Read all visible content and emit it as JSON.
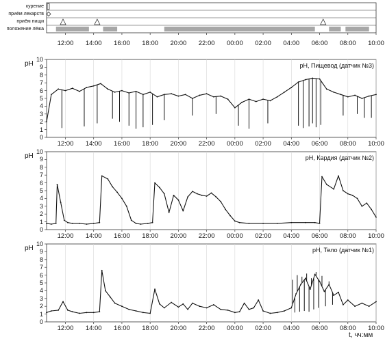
{
  "event_rows": [
    "курение",
    "приём лекарств",
    "приём пищи",
    "положение лёжа"
  ],
  "event_ticks": [
    "12:00",
    "14:00",
    "16:00",
    "18:00",
    "20:00",
    "22:00",
    "00:00",
    "02:00",
    "04:00",
    "06:00",
    "08:00",
    "10:00"
  ],
  "unit_label": "t, чч:мм",
  "colors": {
    "trace": "#111111",
    "recumbent": "#a7a7a7",
    "frame": "#333333",
    "grid": "#d7d7d7"
  },
  "chart_data": [
    {
      "type": "line",
      "title": "pH, Пищевод (датчик №3)",
      "ylabel": "pH",
      "ylim": [
        0,
        10
      ],
      "x_ticks": [
        "12:00",
        "14:00",
        "16:00",
        "18:00",
        "20:00",
        "22:00",
        "00:00",
        "02:00",
        "04:00",
        "06:00",
        "08:00",
        "10:00"
      ],
      "y_ticks": [
        "0",
        "1",
        "2",
        "3",
        "4",
        "5",
        "6",
        "7",
        "8",
        "9",
        "10"
      ],
      "x": [
        "10:40",
        "11:00",
        "11:30",
        "12:00",
        "12:30",
        "13:00",
        "13:30",
        "14:00",
        "14:30",
        "15:00",
        "15:30",
        "16:00",
        "16:30",
        "17:00",
        "17:30",
        "18:00",
        "18:30",
        "19:00",
        "19:30",
        "20:00",
        "20:30",
        "21:00",
        "21:30",
        "22:00",
        "22:30",
        "23:00",
        "23:30",
        "00:00",
        "00:30",
        "01:00",
        "01:30",
        "02:00",
        "02:30",
        "03:00",
        "03:30",
        "04:00",
        "04:30",
        "05:00",
        "05:30",
        "06:00",
        "06:30",
        "07:00",
        "07:30",
        "08:00",
        "08:30",
        "09:00",
        "09:30",
        "10:00"
      ],
      "values": [
        2.0,
        5.5,
        6.2,
        6.0,
        6.3,
        5.9,
        6.4,
        6.6,
        6.9,
        6.2,
        5.8,
        6.0,
        5.7,
        5.9,
        5.5,
        5.8,
        5.2,
        5.5,
        5.6,
        5.3,
        5.5,
        5.0,
        5.4,
        5.6,
        5.2,
        5.3,
        4.9,
        3.8,
        4.5,
        4.9,
        4.6,
        4.9,
        4.7,
        5.2,
        5.8,
        6.4,
        7.1,
        7.4,
        7.6,
        7.5,
        6.2,
        5.8,
        5.5,
        5.2,
        5.4,
        5.0,
        5.3,
        5.5
      ],
      "dips": [
        [
          "11:45",
          1.2
        ],
        [
          "13:20",
          1.4
        ],
        [
          "14:15",
          1.8
        ],
        [
          "15:20",
          2.4
        ],
        [
          "15:50",
          2.0
        ],
        [
          "16:30",
          1.5
        ],
        [
          "17:00",
          1.1
        ],
        [
          "17:30",
          1.3
        ],
        [
          "18:10",
          1.6
        ],
        [
          "19:00",
          2.2
        ],
        [
          "21:00",
          2.8
        ],
        [
          "22:40",
          3.0
        ],
        [
          "00:15",
          1.5
        ],
        [
          "01:00",
          1.1
        ],
        [
          "02:20",
          1.8
        ],
        [
          "04:30",
          1.5
        ],
        [
          "04:50",
          1.2
        ],
        [
          "05:15",
          1.4
        ],
        [
          "05:30",
          1.8
        ],
        [
          "05:45",
          1.3
        ],
        [
          "06:05",
          1.6
        ],
        [
          "07:40",
          2.8
        ],
        [
          "08:40",
          3.0
        ],
        [
          "09:10",
          2.5
        ],
        [
          "09:40",
          2.5
        ]
      ]
    },
    {
      "type": "line",
      "title": "pH, Кардия (датчик №2)",
      "ylabel": "pH",
      "ylim": [
        0,
        10
      ],
      "x_ticks": [
        "12:00",
        "14:00",
        "16:00",
        "18:00",
        "20:00",
        "22:00",
        "00:00",
        "02:00",
        "04:00",
        "06:00",
        "08:00",
        "10:00"
      ],
      "y_ticks": [
        "0",
        "1",
        "2",
        "3",
        "4",
        "5",
        "6",
        "7",
        "8",
        "9",
        "10"
      ],
      "x": [
        "10:40",
        "11:00",
        "11:20",
        "11:25",
        "11:40",
        "11:55",
        "12:10",
        "12:30",
        "13:00",
        "13:30",
        "14:00",
        "14:25",
        "14:35",
        "15:00",
        "15:20",
        "15:40",
        "16:00",
        "16:20",
        "16:40",
        "17:00",
        "17:20",
        "17:50",
        "18:10",
        "18:20",
        "18:40",
        "19:00",
        "19:20",
        "19:40",
        "20:00",
        "20:20",
        "20:40",
        "21:00",
        "21:20",
        "21:40",
        "22:00",
        "22:20",
        "22:40",
        "23:00",
        "23:20",
        "23:40",
        "00:00",
        "00:20",
        "01:00",
        "02:00",
        "03:00",
        "04:00",
        "05:00",
        "05:40",
        "06:00",
        "06:10",
        "06:30",
        "07:00",
        "07:20",
        "07:40",
        "08:00",
        "08:20",
        "08:40",
        "09:00",
        "09:20",
        "09:40",
        "10:00"
      ],
      "values": [
        0.8,
        0.7,
        0.8,
        5.8,
        3.5,
        1.2,
        0.9,
        0.8,
        0.8,
        0.7,
        0.8,
        0.9,
        6.9,
        6.5,
        5.5,
        4.8,
        4.0,
        3.0,
        1.2,
        0.8,
        0.7,
        0.8,
        0.9,
        6.0,
        5.4,
        4.6,
        2.2,
        4.4,
        3.8,
        2.4,
        4.2,
        4.9,
        4.6,
        4.4,
        4.3,
        4.7,
        4.2,
        3.6,
        2.6,
        1.8,
        1.1,
        0.9,
        0.8,
        0.8,
        0.8,
        0.9,
        0.9,
        0.9,
        0.8,
        6.8,
        5.8,
        5.2,
        6.9,
        5.0,
        4.6,
        4.4,
        4.0,
        3.0,
        3.4,
        2.6,
        1.6
      ]
    },
    {
      "type": "line",
      "title": "pH, Тело (датчик №1)",
      "ylabel": "pH",
      "ylim": [
        0,
        10
      ],
      "x_ticks": [
        "12:00",
        "14:00",
        "16:00",
        "18:00",
        "20:00",
        "22:00",
        "00:00",
        "02:00",
        "04:00",
        "06:00",
        "08:00",
        "10:00"
      ],
      "y_ticks": [
        "0",
        "1",
        "2",
        "3",
        "4",
        "5",
        "6",
        "7",
        "8",
        "9",
        "10"
      ],
      "x": [
        "10:40",
        "11:00",
        "11:30",
        "11:50",
        "12:10",
        "12:30",
        "13:00",
        "13:30",
        "14:00",
        "14:25",
        "14:35",
        "14:50",
        "15:10",
        "15:30",
        "16:00",
        "16:30",
        "17:00",
        "17:30",
        "18:00",
        "18:20",
        "18:40",
        "19:00",
        "19:30",
        "20:00",
        "20:20",
        "20:40",
        "21:00",
        "21:30",
        "22:00",
        "22:30",
        "23:00",
        "23:30",
        "00:00",
        "00:20",
        "00:40",
        "01:00",
        "01:20",
        "01:40",
        "02:00",
        "02:30",
        "03:00",
        "03:30",
        "04:00",
        "04:20",
        "04:40",
        "05:00",
        "05:20",
        "05:40",
        "06:00",
        "06:20",
        "06:40",
        "07:00",
        "07:20",
        "07:40",
        "08:00",
        "08:30",
        "09:00",
        "09:30",
        "10:00"
      ],
      "values": [
        1.2,
        1.4,
        1.5,
        2.6,
        1.5,
        1.3,
        1.1,
        1.2,
        1.2,
        1.3,
        6.6,
        4.0,
        3.2,
        2.4,
        2.0,
        1.6,
        1.4,
        1.2,
        1.1,
        4.2,
        2.3,
        1.8,
        2.5,
        1.9,
        2.3,
        1.6,
        2.4,
        2.0,
        1.8,
        2.2,
        1.6,
        1.5,
        1.2,
        1.3,
        2.4,
        1.6,
        1.8,
        2.8,
        1.4,
        1.1,
        1.2,
        1.4,
        1.8,
        3.6,
        4.8,
        5.6,
        4.2,
        6.1,
        5.2,
        3.9,
        4.8,
        3.4,
        3.8,
        2.2,
        2.8,
        2.0,
        2.4,
        2.0,
        2.6
      ],
      "spikes": [
        [
          "04:05",
          5.4
        ],
        [
          "04:15",
          1.2
        ],
        [
          "04:25",
          6.0
        ],
        [
          "04:35",
          1.3
        ],
        [
          "04:45",
          5.8
        ],
        [
          "04:55",
          1.4
        ],
        [
          "05:05",
          6.2
        ],
        [
          "05:15",
          1.3
        ],
        [
          "05:25",
          5.6
        ],
        [
          "05:35",
          1.6
        ],
        [
          "05:45",
          6.4
        ],
        [
          "05:55",
          1.8
        ],
        [
          "06:10",
          5.9
        ],
        [
          "06:25",
          2.0
        ],
        [
          "06:40",
          5.2
        ],
        [
          "06:55",
          2.2
        ]
      ]
    }
  ]
}
